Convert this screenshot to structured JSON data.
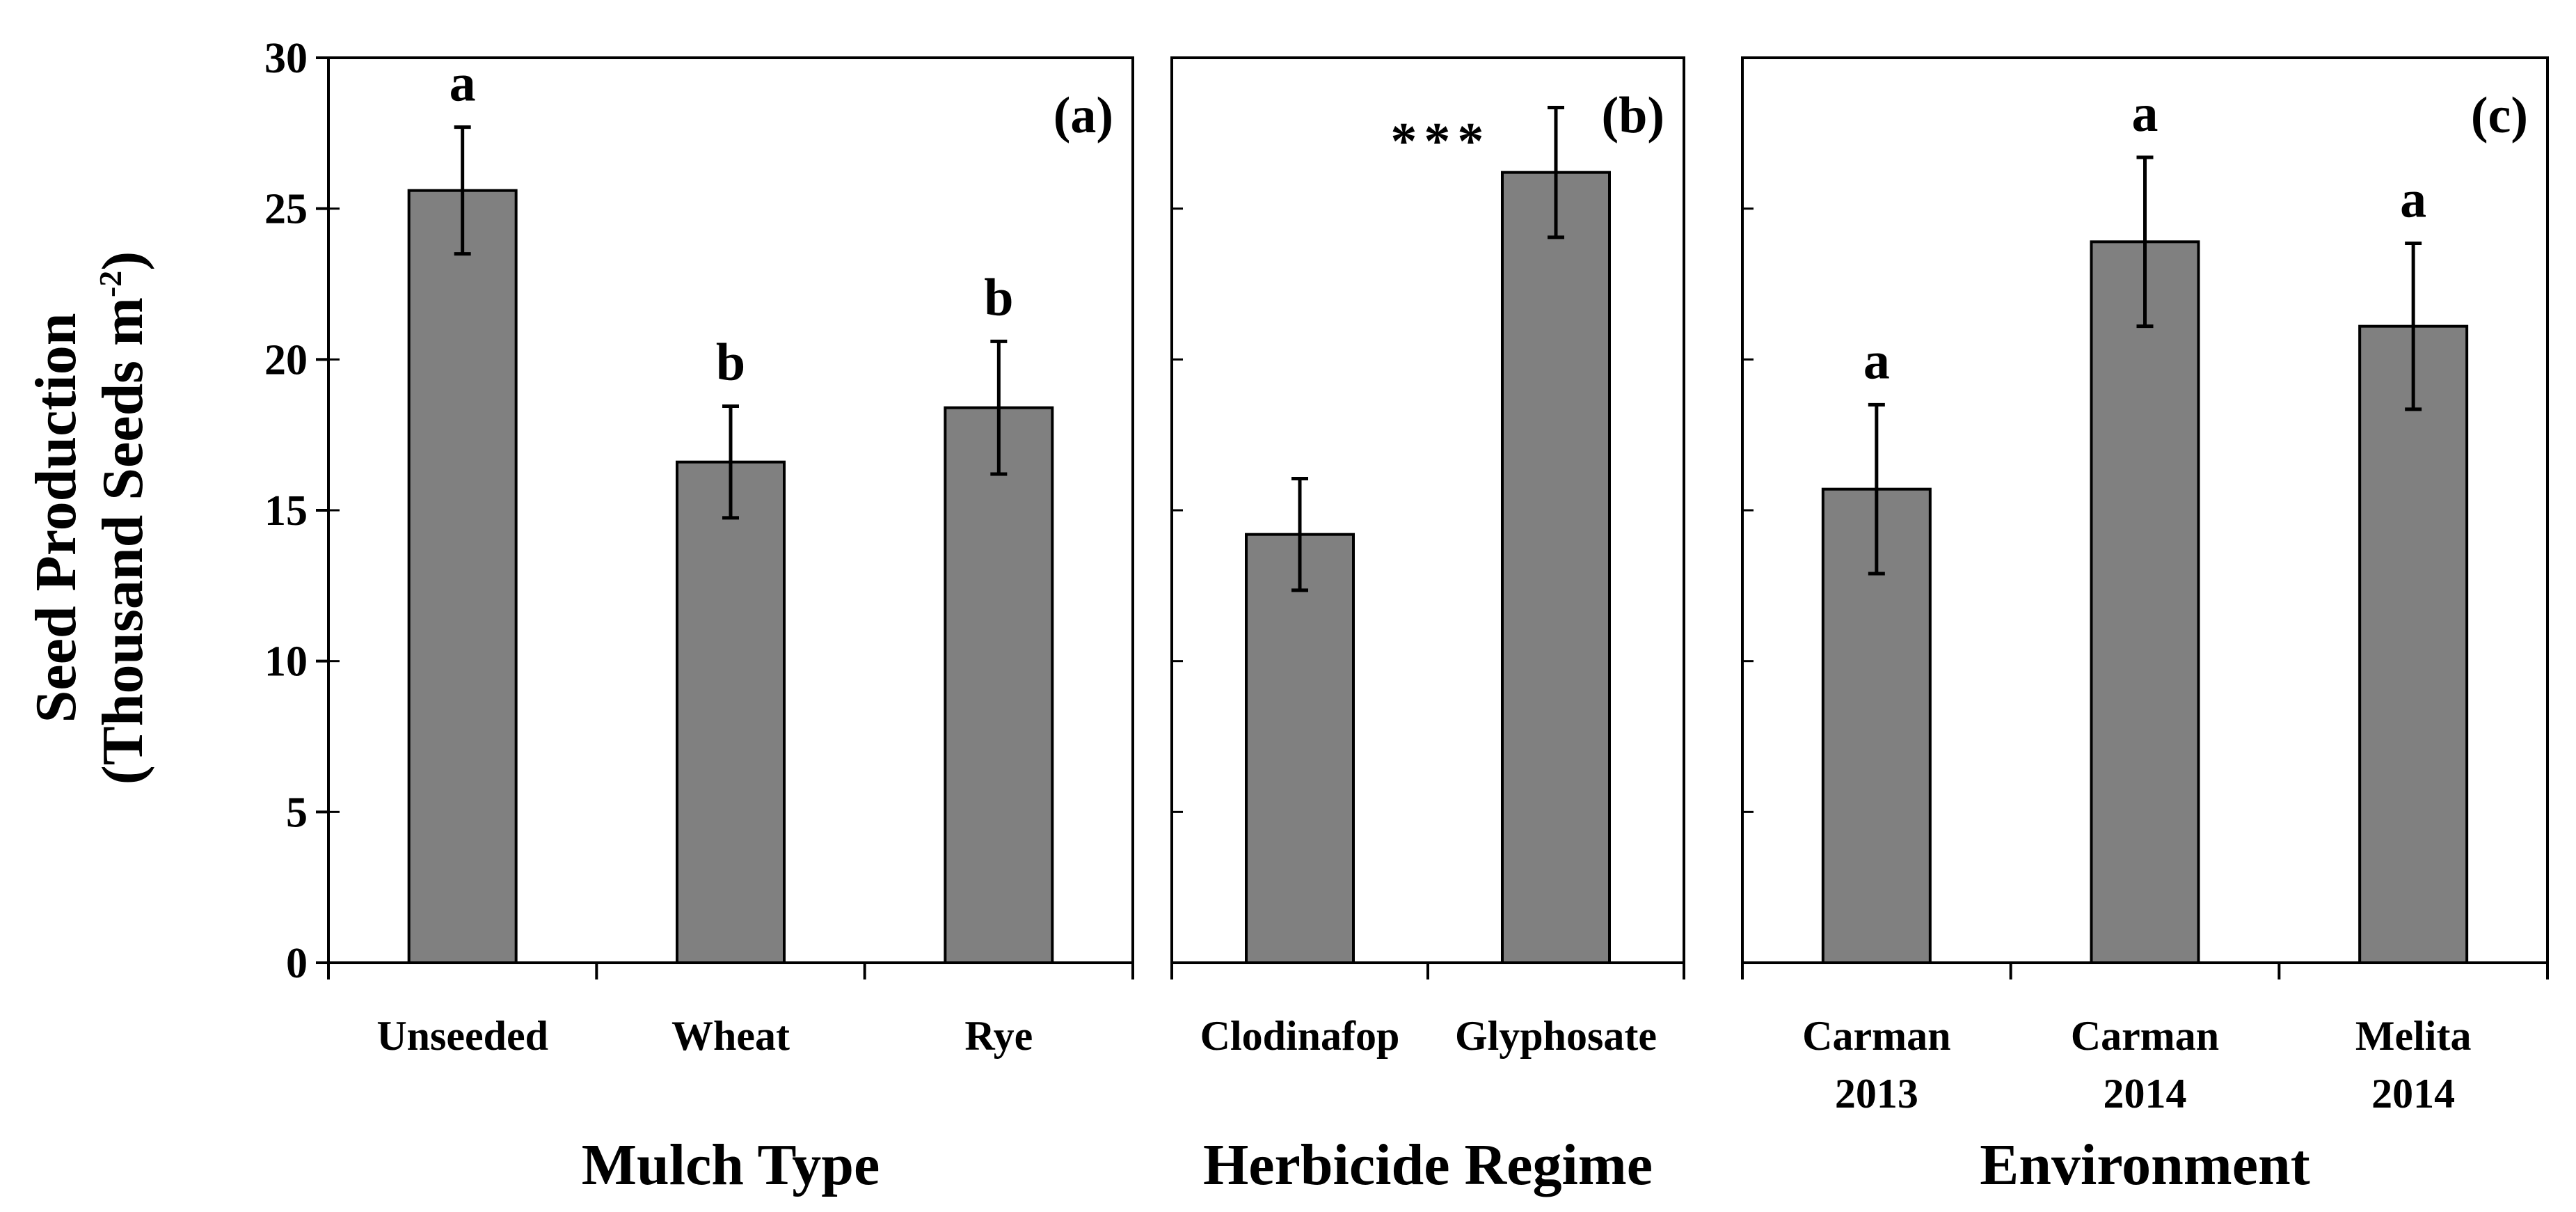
{
  "chart_data": {
    "type": "bar",
    "ylabel": {
      "line1": "Seed Production",
      "line2_pre": "(Thousand Seeds m",
      "line2_sup": "-2",
      "line2_post": ")"
    },
    "ylim": [
      0,
      30
    ],
    "yticks": [
      0,
      5,
      10,
      15,
      20,
      25,
      30
    ],
    "bar_color": "#808080",
    "panels": [
      {
        "label": "(a)",
        "xlabel": "Mulch Type",
        "categories": [
          [
            "Unseeded"
          ],
          [
            "Wheat"
          ],
          [
            "Rye"
          ]
        ],
        "values": [
          25.6,
          16.6,
          18.4
        ],
        "errors": [
          2.1,
          1.85,
          2.2
        ],
        "annotations": [
          "a",
          "b",
          "b"
        ]
      },
      {
        "label": "(b)",
        "xlabel": "Herbicide Regime",
        "categories": [
          [
            "Clodinafop"
          ],
          [
            "Glyphosate"
          ]
        ],
        "values": [
          14.2,
          26.2
        ],
        "errors": [
          1.85,
          2.15
        ],
        "annotations": [
          "",
          ""
        ],
        "significance": "***"
      },
      {
        "label": "(c)",
        "xlabel": "Environment",
        "categories": [
          [
            "Carman",
            "2013"
          ],
          [
            "Carman",
            "2014"
          ],
          [
            "Melita",
            "2014"
          ]
        ],
        "values": [
          15.7,
          23.9,
          21.1
        ],
        "errors": [
          2.8,
          2.8,
          2.75
        ],
        "annotations": [
          "a",
          "a",
          "a"
        ]
      }
    ]
  }
}
